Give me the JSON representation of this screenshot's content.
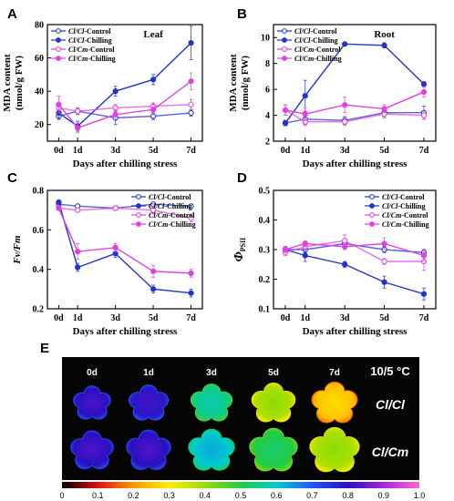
{
  "chart_data": [
    {
      "id": "A",
      "type": "line",
      "panel_label": "A",
      "annotation": "Leaf",
      "ylabel": "MDA content (nmol/g FW)",
      "ylabel_lines": [
        "MDA content",
        "(nmol/g FW)"
      ],
      "xlabel": "Days after chilling stress",
      "categories": [
        "0d",
        "1d",
        "3d",
        "5d",
        "7d"
      ],
      "x": [
        0,
        1,
        3,
        5,
        7
      ],
      "ylim": [
        10,
        80
      ],
      "yticks": [
        20,
        40,
        60,
        80
      ],
      "legend_position": "top-left",
      "series": [
        {
          "name": "Cl/Cl-Control",
          "color": "#2233cc",
          "filled": false,
          "values": [
            25,
            28,
            24,
            25,
            27
          ],
          "errors": [
            2,
            2,
            4,
            2,
            2
          ]
        },
        {
          "name": "Cl/Cl-Chilling",
          "color": "#2233cc",
          "filled": true,
          "values": [
            27,
            19,
            40,
            47,
            69
          ],
          "errors": [
            3,
            3,
            3,
            3,
            10
          ]
        },
        {
          "name": "Cl/Cm-Control",
          "color": "#e040e0",
          "filled": false,
          "values": [
            30,
            28,
            30,
            31,
            32
          ],
          "errors": [
            3,
            2,
            2,
            2,
            3
          ]
        },
        {
          "name": "Cl/Cm-Chilling",
          "color": "#e040e0",
          "filled": true,
          "values": [
            32,
            18,
            26,
            29,
            46
          ],
          "errors": [
            5,
            3,
            3,
            3,
            5
          ]
        }
      ]
    },
    {
      "id": "B",
      "type": "line",
      "panel_label": "B",
      "annotation": "Root",
      "ylabel": "MDA content (nmol/g FW)",
      "ylabel_lines": [
        "MDA content",
        "(nmol/g FW)"
      ],
      "xlabel": "Days after chilling stress",
      "categories": [
        "0d",
        "1d",
        "3d",
        "5d",
        "7d"
      ],
      "x": [
        0,
        1,
        3,
        5,
        7
      ],
      "ylim": [
        2,
        11
      ],
      "yticks": [
        2,
        4,
        6,
        8,
        10
      ],
      "legend_position": "top-left",
      "series": [
        {
          "name": "Cl/Cl-Control",
          "color": "#2233cc",
          "filled": false,
          "values": [
            3.4,
            3.7,
            3.6,
            4.2,
            4.2
          ],
          "errors": [
            0.2,
            0.4,
            0.3,
            0.3,
            0.5
          ]
        },
        {
          "name": "Cl/Cl-Chilling",
          "color": "#2233cc",
          "filled": true,
          "values": [
            3.4,
            5.5,
            9.5,
            9.4,
            6.4
          ],
          "errors": [
            0.2,
            1.2,
            0.1,
            0.2,
            0.2
          ]
        },
        {
          "name": "Cl/Cm-Control",
          "color": "#e040e0",
          "filled": false,
          "values": [
            4.4,
            3.5,
            3.5,
            4.1,
            4.0
          ],
          "errors": [
            0.4,
            0.3,
            0.3,
            0.3,
            0.3
          ]
        },
        {
          "name": "Cl/Cm-Chilling",
          "color": "#e040e0",
          "filled": true,
          "values": [
            4.4,
            4.1,
            4.8,
            4.5,
            5.8
          ],
          "errors": [
            0.4,
            0.5,
            0.6,
            0.3,
            0.4
          ]
        }
      ]
    },
    {
      "id": "C",
      "type": "line",
      "panel_label": "C",
      "annotation": "",
      "ylabel": "Fv/Fm",
      "ylabel_lines": [
        "Fv/Fm"
      ],
      "xlabel": "Days after chilling stress",
      "categories": [
        "0d",
        "1d",
        "3d",
        "5d",
        "7d"
      ],
      "x": [
        0,
        1,
        3,
        5,
        7
      ],
      "ylim": [
        0.2,
        0.8
      ],
      "yticks": [
        0.2,
        0.4,
        0.6,
        0.8
      ],
      "legend_position": "top-right",
      "series": [
        {
          "name": "Cl/Cl-Control",
          "color": "#2233cc",
          "filled": false,
          "values": [
            0.73,
            0.72,
            0.71,
            0.73,
            0.72
          ],
          "errors": [
            0.01,
            0.01,
            0.01,
            0.01,
            0.01
          ]
        },
        {
          "name": "Cl/Cl-Chilling",
          "color": "#2233cc",
          "filled": true,
          "values": [
            0.74,
            0.41,
            0.48,
            0.3,
            0.28
          ],
          "errors": [
            0.01,
            0.02,
            0.02,
            0.02,
            0.02
          ]
        },
        {
          "name": "Cl/Cm-Control",
          "color": "#e040e0",
          "filled": false,
          "values": [
            0.71,
            0.7,
            0.71,
            0.7,
            0.66
          ],
          "errors": [
            0.01,
            0.01,
            0.01,
            0.02,
            0.02
          ]
        },
        {
          "name": "Cl/Cm-Chilling",
          "color": "#e040e0",
          "filled": true,
          "values": [
            0.71,
            0.49,
            0.51,
            0.39,
            0.38
          ],
          "errors": [
            0.01,
            0.04,
            0.02,
            0.03,
            0.02
          ]
        }
      ]
    },
    {
      "id": "D",
      "type": "line",
      "panel_label": "D",
      "annotation": "",
      "ylabel": "ΦPSII",
      "ylabel_main": "Φ",
      "ylabel_sub": "PSII",
      "ylabel_lines": [],
      "xlabel": "Days after chilling stress",
      "categories": [
        "0d",
        "1d",
        "3d",
        "5d",
        "7d"
      ],
      "x": [
        0,
        1,
        3,
        5,
        7
      ],
      "ylim": [
        0.1,
        0.5
      ],
      "yticks": [
        0.1,
        0.2,
        0.3,
        0.4,
        0.5
      ],
      "legend_position": "top-right",
      "series": [
        {
          "name": "Cl/Cl-Control",
          "color": "#2233cc",
          "filled": false,
          "values": [
            0.3,
            0.3,
            0.32,
            0.3,
            0.29
          ],
          "errors": [
            0.01,
            0.01,
            0.01,
            0.01,
            0.01
          ]
        },
        {
          "name": "Cl/Cl-Chilling",
          "color": "#2233cc",
          "filled": true,
          "values": [
            0.3,
            0.28,
            0.25,
            0.19,
            0.15
          ],
          "errors": [
            0.01,
            0.02,
            0.01,
            0.02,
            0.02
          ]
        },
        {
          "name": "Cl/Cm-Control",
          "color": "#e040e0",
          "filled": false,
          "values": [
            0.29,
            0.31,
            0.33,
            0.26,
            0.26
          ],
          "errors": [
            0.01,
            0.01,
            0.02,
            0.01,
            0.03
          ]
        },
        {
          "name": "Cl/Cm-Chilling",
          "color": "#e040e0",
          "filled": true,
          "values": [
            0.3,
            0.32,
            0.31,
            0.32,
            0.28
          ],
          "errors": [
            0.01,
            0.01,
            0.01,
            0.02,
            0.02
          ]
        }
      ]
    }
  ],
  "imaging": {
    "panel_label": "E",
    "days": [
      "0d",
      "1d",
      "3d",
      "5d",
      "7d"
    ],
    "temperature": "10/5 °C",
    "rows": [
      {
        "genotype": "Cl/Cl",
        "values": [
          0.8,
          0.79,
          0.55,
          0.38,
          0.25
        ]
      },
      {
        "genotype": "Cl/Cm",
        "values": [
          0.8,
          0.8,
          0.6,
          0.5,
          0.38
        ]
      }
    ],
    "colorbar_ticks": [
      "0",
      "0.1",
      "0.2",
      "0.3",
      "0.4",
      "0.5",
      "0.6",
      "0.7",
      "0.8",
      "0.9",
      "1.0"
    ],
    "colorbar_stops": [
      "#000000",
      "#e01010",
      "#ff9900",
      "#ffee00",
      "#99dd00",
      "#22cc44",
      "#00cccc",
      "#2255ff",
      "#2a10c0",
      "#aa22dd",
      "#ff66cc"
    ]
  }
}
